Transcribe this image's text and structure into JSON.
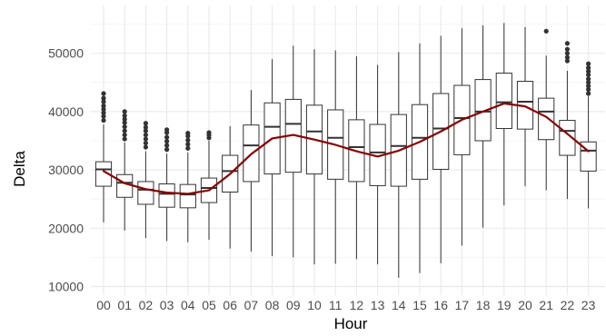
{
  "chart_data": {
    "type": "box",
    "xlabel": "Hour",
    "ylabel": "Delta",
    "ylim": [
      10000,
      56000
    ],
    "yticks": [
      10000,
      20000,
      30000,
      40000,
      50000
    ],
    "ytick_labels": [
      "10000",
      "20000",
      "30000",
      "40000",
      "50000"
    ],
    "grid": true,
    "categories": [
      "00",
      "01",
      "02",
      "03",
      "04",
      "05",
      "06",
      "07",
      "08",
      "09",
      "10",
      "11",
      "12",
      "13",
      "14",
      "15",
      "16",
      "17",
      "18",
      "19",
      "20",
      "21",
      "22",
      "23"
    ],
    "boxes": [
      {
        "min": 21000,
        "q1": 27200,
        "median": 30100,
        "q3": 31400,
        "max": 37800,
        "outliers": [
          38500,
          39200,
          39800,
          40400,
          41000,
          41700,
          42300,
          43100
        ]
      },
      {
        "min": 19600,
        "q1": 25300,
        "median": 27800,
        "q3": 29200,
        "max": 34700,
        "outliers": [
          35300,
          36000,
          36700,
          37400,
          38100,
          38700,
          39300,
          40000
        ]
      },
      {
        "min": 18300,
        "q1": 24100,
        "median": 26600,
        "q3": 28000,
        "max": 33200,
        "outliers": [
          33900,
          34600,
          35300,
          36000,
          36700,
          37300,
          38000
        ]
      },
      {
        "min": 17800,
        "q1": 23600,
        "median": 25900,
        "q3": 27600,
        "max": 32800,
        "outliers": [
          33500,
          34200,
          34900,
          35600,
          36400,
          36900
        ]
      },
      {
        "min": 17600,
        "q1": 23500,
        "median": 25800,
        "q3": 27500,
        "max": 33000,
        "outliers": [
          33700,
          34400,
          35100,
          35800,
          36300
        ]
      },
      {
        "min": 18000,
        "q1": 24400,
        "median": 26900,
        "q3": 28600,
        "max": 35000,
        "outliers": [
          35500,
          36000,
          36400
        ]
      },
      {
        "min": 16500,
        "q1": 26200,
        "median": 29800,
        "q3": 32500,
        "max": 37500,
        "outliers": []
      },
      {
        "min": 16000,
        "q1": 28000,
        "median": 34200,
        "q3": 37700,
        "max": 43700,
        "outliers": []
      },
      {
        "min": 15200,
        "q1": 29300,
        "median": 37400,
        "q3": 41500,
        "max": 49000,
        "outliers": []
      },
      {
        "min": 15000,
        "q1": 29600,
        "median": 37900,
        "q3": 42100,
        "max": 51300,
        "outliers": []
      },
      {
        "min": 13800,
        "q1": 29300,
        "median": 36600,
        "q3": 41100,
        "max": 50700,
        "outliers": []
      },
      {
        "min": 13900,
        "q1": 28400,
        "median": 35500,
        "q3": 40300,
        "max": 50500,
        "outliers": []
      },
      {
        "min": 14700,
        "q1": 28000,
        "median": 33900,
        "q3": 38600,
        "max": 49500,
        "outliers": []
      },
      {
        "min": 13800,
        "q1": 27300,
        "median": 33000,
        "q3": 37800,
        "max": 48000,
        "outliers": []
      },
      {
        "min": 11500,
        "q1": 27200,
        "median": 34100,
        "q3": 39500,
        "max": 50200,
        "outliers": []
      },
      {
        "min": 12300,
        "q1": 28400,
        "median": 35500,
        "q3": 41200,
        "max": 51700,
        "outliers": []
      },
      {
        "min": 14000,
        "q1": 30100,
        "median": 37100,
        "q3": 43100,
        "max": 53000,
        "outliers": []
      },
      {
        "min": 17000,
        "q1": 32600,
        "median": 38900,
        "q3": 44500,
        "max": 54300,
        "outliers": []
      },
      {
        "min": 20100,
        "q1": 35000,
        "median": 40000,
        "q3": 45500,
        "max": 54800,
        "outliers": []
      },
      {
        "min": 23900,
        "q1": 37100,
        "median": 41600,
        "q3": 46600,
        "max": 55200,
        "outliers": []
      },
      {
        "min": 27200,
        "q1": 37000,
        "median": 41700,
        "q3": 45200,
        "max": 54500,
        "outliers": []
      },
      {
        "min": 26500,
        "q1": 35200,
        "median": 40000,
        "q3": 42300,
        "max": 49600,
        "outliers": [
          53800
        ]
      },
      {
        "min": 25000,
        "q1": 32500,
        "median": 36700,
        "q3": 38500,
        "max": 47000,
        "outliers": [
          48700,
          49300,
          50000,
          50700,
          51700
        ]
      },
      {
        "min": 23400,
        "q1": 29800,
        "median": 33300,
        "q3": 34800,
        "max": 42600,
        "outliers": [
          43100,
          43800,
          44400,
          45000,
          45600,
          46300,
          46900,
          47500,
          48200
        ]
      }
    ],
    "trend_line": {
      "color": "#8b0000",
      "values": [
        29800,
        27700,
        26700,
        26100,
        25900,
        26500,
        29300,
        32700,
        35400,
        36000,
        35200,
        34300,
        33200,
        32300,
        33300,
        34800,
        36600,
        38600,
        40000,
        41400,
        40900,
        39100,
        36200,
        33200
      ]
    },
    "colors": {
      "box_stroke": "#333333",
      "box_fill": "#ffffff",
      "grid_major": "#ebebeb",
      "grid_minor": "#f4f4f4",
      "outlier": "#333333"
    }
  }
}
